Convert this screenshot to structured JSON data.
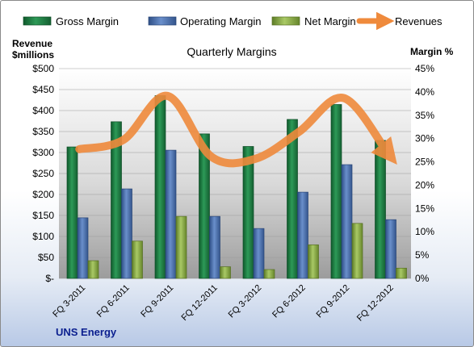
{
  "chart_data": {
    "type": "bar",
    "title": "Quarterly Margins",
    "company": "UNS Energy",
    "left_axis_label": [
      "Revenue",
      "$millions"
    ],
    "right_axis_label": "Margin %",
    "categories": [
      "FQ 3-2011",
      "FQ 6-2011",
      "FQ 9-2011",
      "FQ 12-2011",
      "FQ 3-2012",
      "FQ 6-2012",
      "FQ 9-2012",
      "FQ 12-2012"
    ],
    "left_ticks": [
      "$-",
      "$50",
      "$100",
      "$150",
      "$200",
      "$250",
      "$300",
      "$350",
      "$400",
      "$450",
      "$500"
    ],
    "right_ticks": [
      "0%",
      "5%",
      "10%",
      "15%",
      "20%",
      "25%",
      "30%",
      "35%",
      "40%",
      "45%"
    ],
    "left_ylim": [
      0,
      500
    ],
    "right_ylim": [
      0,
      45
    ],
    "series": [
      {
        "name": "Gross Margin",
        "axis": "right",
        "color": "#1f7a43",
        "values": [
          28.2,
          33.6,
          39.2,
          31.0,
          28.3,
          34.1,
          37.3,
          29.6
        ]
      },
      {
        "name": "Operating Margin",
        "axis": "right",
        "color": "#4a6fb0",
        "values": [
          13.0,
          19.2,
          27.5,
          13.3,
          10.7,
          18.5,
          24.4,
          12.6
        ]
      },
      {
        "name": "Net Margin",
        "axis": "right",
        "color": "#8db04a",
        "values": [
          3.8,
          8.0,
          13.3,
          2.5,
          1.9,
          7.2,
          11.8,
          2.2
        ]
      },
      {
        "name": "Revenues",
        "axis": "left",
        "type": "line",
        "color": "#ef8a3c",
        "values": [
          308,
          330,
          435,
          290,
          285,
          350,
          430,
          300
        ]
      }
    ],
    "grid": true,
    "legend_position": "top"
  }
}
